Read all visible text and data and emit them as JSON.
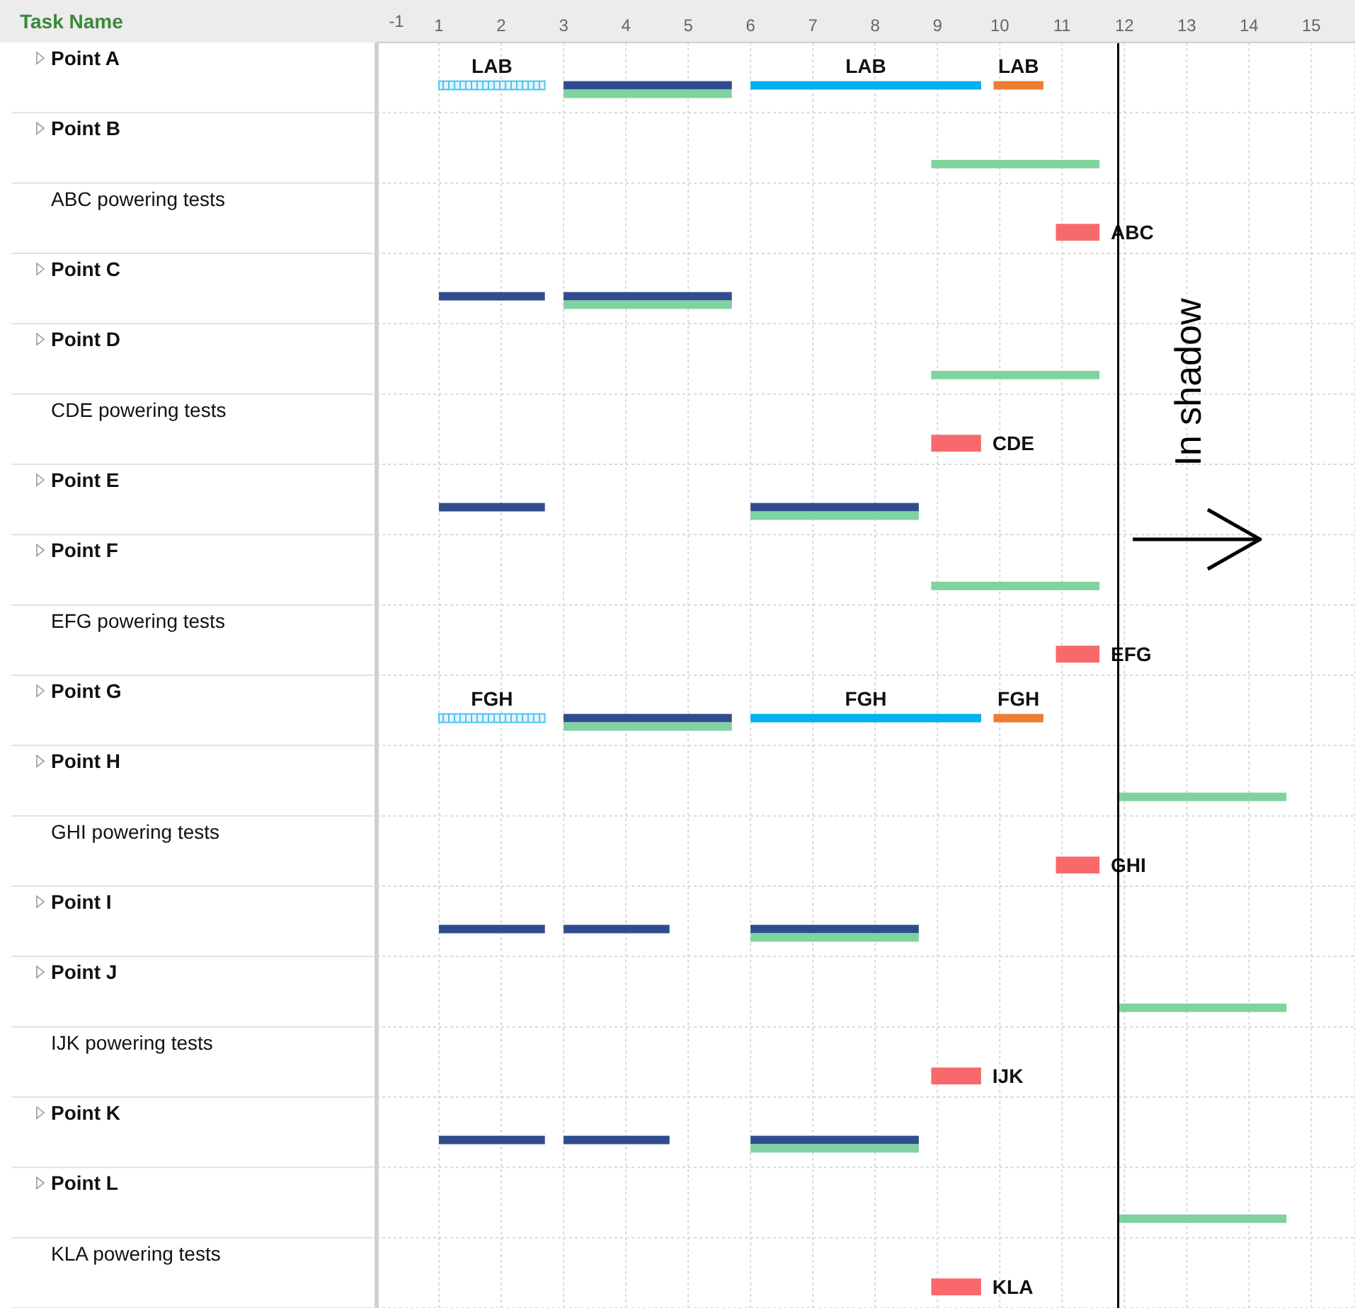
{
  "chart_data": {
    "type": "bar",
    "orientation": "horizontal",
    "ylabel": "Task Name",
    "categories": [
      "Point A",
      "Point B",
      "ABC powering tests",
      "Point C",
      "Point D",
      "CDE powering tests",
      "Point E",
      "Point F",
      "EFG powering tests",
      "Point G",
      "Point H",
      "GHI powering tests",
      "Point I",
      "Point J",
      "IJK powering tests",
      "Point K",
      "Point L",
      "KLA powering tests"
    ],
    "xlim": [
      0,
      15.7
    ],
    "xticks": [
      1,
      2,
      3,
      4,
      5,
      6,
      7,
      8,
      9,
      10,
      11,
      12,
      13,
      14,
      15
    ],
    "grid": true,
    "series": [
      {
        "color": "#4fc3ef",
        "base": [
          1,
          null,
          null,
          null,
          null,
          null,
          null,
          null,
          null,
          1,
          null,
          null,
          null,
          null,
          null,
          null,
          null,
          null
        ],
        "values": [
          1.7,
          null,
          null,
          null,
          null,
          null,
          null,
          null,
          null,
          1.7,
          null,
          null,
          null,
          null,
          null,
          null,
          null,
          null
        ],
        "value_labels": [
          "LAB",
          null,
          null,
          null,
          null,
          null,
          null,
          null,
          null,
          "FGH",
          null,
          null,
          null,
          null,
          null,
          null,
          null,
          null
        ]
      },
      {
        "color": "#2f4d8e",
        "base": [
          3,
          null,
          null,
          1,
          null,
          null,
          1,
          null,
          null,
          3,
          null,
          null,
          1,
          null,
          null,
          1,
          null,
          null
        ],
        "values": [
          2.7,
          null,
          null,
          1.7,
          null,
          null,
          1.7,
          null,
          null,
          2.7,
          null,
          null,
          1.7,
          null,
          null,
          1.7,
          null,
          null
        ]
      },
      {
        "color": "#2f4d8e",
        "base": [
          null,
          null,
          null,
          3,
          null,
          null,
          6,
          null,
          null,
          null,
          null,
          null,
          3,
          null,
          null,
          3,
          null,
          null
        ],
        "values": [
          null,
          null,
          null,
          2.7,
          null,
          null,
          2.7,
          null,
          null,
          null,
          null,
          null,
          1.7,
          null,
          null,
          1.7,
          null,
          null
        ]
      },
      {
        "color": "#2f4d8e",
        "base": [
          null,
          null,
          null,
          null,
          null,
          null,
          null,
          null,
          null,
          null,
          null,
          null,
          6,
          null,
          null,
          6,
          null,
          null
        ],
        "values": [
          null,
          null,
          null,
          null,
          null,
          null,
          null,
          null,
          null,
          null,
          null,
          null,
          2.7,
          null,
          null,
          2.7,
          null,
          null
        ]
      },
      {
        "color": "#00b0f0",
        "base": [
          6,
          null,
          null,
          null,
          null,
          null,
          null,
          null,
          null,
          6,
          null,
          null,
          null,
          null,
          null,
          null,
          null,
          null
        ],
        "values": [
          3.7,
          null,
          null,
          null,
          null,
          null,
          null,
          null,
          null,
          3.7,
          null,
          null,
          null,
          null,
          null,
          null,
          null,
          null
        ],
        "value_labels": [
          "LAB",
          null,
          null,
          null,
          null,
          null,
          null,
          null,
          null,
          "FGH",
          null,
          null,
          null,
          null,
          null,
          null,
          null,
          null
        ]
      },
      {
        "color": "#ed7d31",
        "base": [
          9.9,
          null,
          null,
          null,
          null,
          null,
          null,
          null,
          null,
          9.9,
          null,
          null,
          null,
          null,
          null,
          null,
          null,
          null
        ],
        "values": [
          0.8,
          null,
          null,
          null,
          null,
          null,
          null,
          null,
          null,
          0.8,
          null,
          null,
          null,
          null,
          null,
          null,
          null,
          null
        ],
        "value_labels": [
          "LAB",
          null,
          null,
          null,
          null,
          null,
          null,
          null,
          null,
          "FGH",
          null,
          null,
          null,
          null,
          null,
          null,
          null,
          null
        ]
      },
      {
        "color": "#7fd39f",
        "base": [
          3,
          8.9,
          null,
          3,
          8.9,
          null,
          6,
          8.9,
          null,
          3,
          11.9,
          null,
          6,
          11.9,
          null,
          6,
          11.9,
          null
        ],
        "values": [
          2.7,
          2.7,
          null,
          2.7,
          2.7,
          null,
          2.7,
          2.7,
          null,
          2.7,
          2.7,
          null,
          2.7,
          2.7,
          null,
          2.7,
          2.7,
          null
        ]
      },
      {
        "color": "#f8696b",
        "base": [
          null,
          null,
          10.9,
          null,
          null,
          8.9,
          null,
          null,
          10.9,
          null,
          null,
          10.9,
          null,
          null,
          8.9,
          null,
          null,
          8.9
        ],
        "values": [
          null,
          null,
          0.7,
          null,
          null,
          0.8,
          null,
          null,
          0.7,
          null,
          null,
          0.7,
          null,
          null,
          0.8,
          null,
          null,
          0.8
        ],
        "value_labels": [
          null,
          null,
          "ABC",
          null,
          null,
          "CDE",
          null,
          null,
          "EFG",
          null,
          null,
          "GHI",
          null,
          null,
          "IJK",
          null,
          null,
          "KLA"
        ]
      }
    ],
    "ref_lines": [
      {
        "axis": "x",
        "value": 11.9,
        "color": "#000000"
      }
    ],
    "annotations": [
      "In shadow",
      "-1"
    ]
  }
}
